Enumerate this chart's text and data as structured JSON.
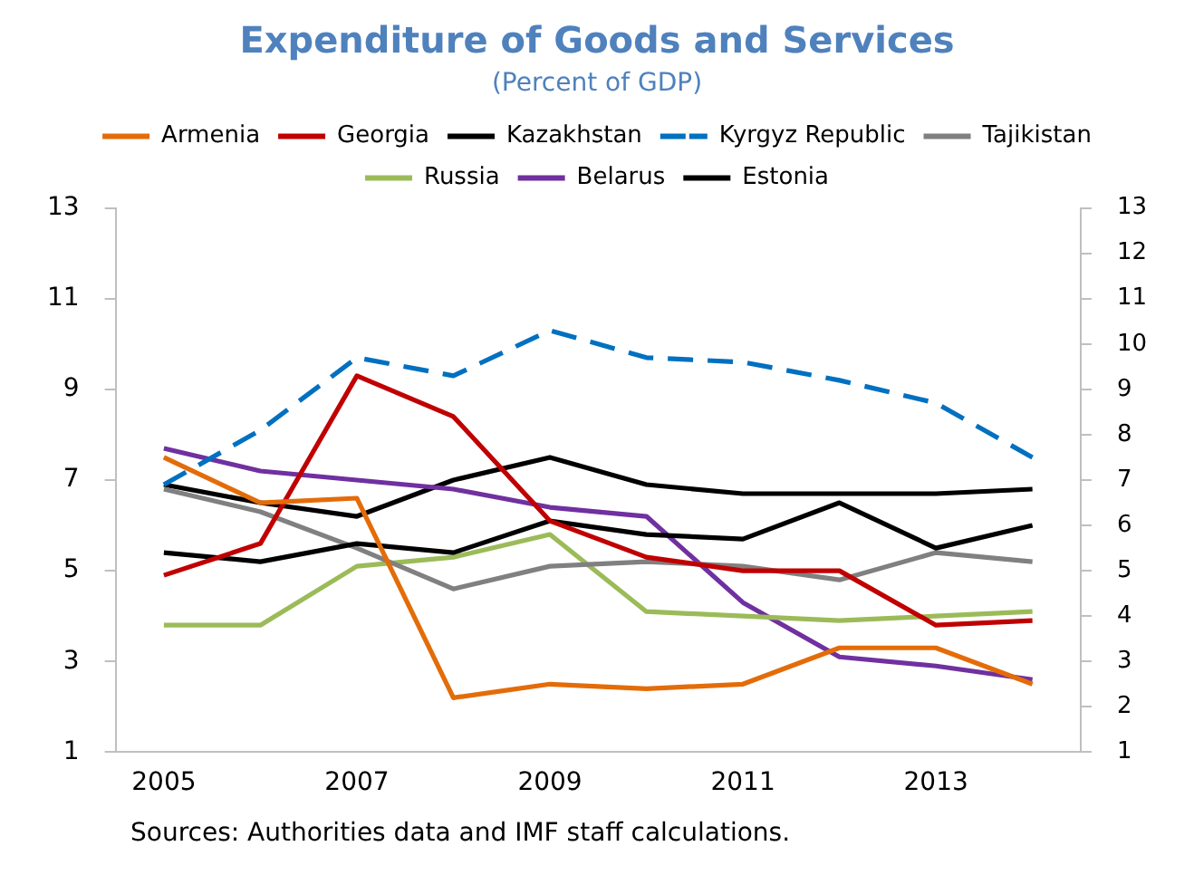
{
  "chart_data": {
    "type": "line",
    "title": "Expenditure of Goods and Services",
    "subtitle": "(Percent of GDP)",
    "x": [
      2005,
      2006,
      2007,
      2008,
      2009,
      2010,
      2011,
      2012,
      2013,
      2014
    ],
    "xlim": [
      2004.5,
      2014.5
    ],
    "xticks": [
      2005,
      2007,
      2009,
      2011,
      2013
    ],
    "ylim": [
      1,
      13
    ],
    "yticks": [
      1,
      3,
      5,
      7,
      9,
      11,
      13
    ],
    "y2lim": [
      1,
      13
    ],
    "y2ticks": [
      1,
      2,
      3,
      4,
      5,
      6,
      7,
      8,
      9,
      10,
      11,
      12,
      13
    ],
    "grid": false,
    "legend": "top",
    "marker": "none",
    "line_style": "solid",
    "series": [
      {
        "name": "Armenia",
        "color": "#e36c09",
        "values": [
          7.5,
          6.5,
          6.6,
          2.2,
          2.5,
          2.4,
          2.5,
          3.3,
          3.3,
          2.5
        ]
      },
      {
        "name": "Georgia",
        "color": "#c00000",
        "values": [
          4.9,
          5.6,
          9.3,
          8.4,
          6.1,
          5.3,
          5.0,
          5.0,
          3.8,
          3.9
        ]
      },
      {
        "name": "Kazakhstan",
        "color": "#000000",
        "values": [
          5.4,
          5.2,
          5.6,
          5.4,
          6.1,
          5.8,
          5.7,
          6.5,
          5.5,
          6.0
        ]
      },
      {
        "name": "Kyrgyz Republic",
        "color": "#0070c0",
        "line_style": "dashed",
        "values": [
          6.9,
          8.1,
          9.7,
          9.3,
          10.3,
          9.7,
          9.6,
          9.2,
          8.7,
          7.5
        ]
      },
      {
        "name": "Tajikistan",
        "color": "#808080",
        "values": [
          6.8,
          6.3,
          5.5,
          4.6,
          5.1,
          5.2,
          5.1,
          4.8,
          5.4,
          5.2
        ]
      },
      {
        "name": "Russia",
        "color": "#9bbb59",
        "values": [
          3.8,
          3.8,
          5.1,
          5.3,
          5.8,
          4.1,
          4.0,
          3.9,
          4.0,
          4.1
        ]
      },
      {
        "name": "Belarus",
        "color": "#7030a0",
        "values": [
          7.7,
          7.2,
          7.0,
          6.8,
          6.4,
          6.2,
          4.3,
          3.1,
          2.9,
          2.6
        ]
      },
      {
        "name": "Estonia",
        "color": "#000000",
        "values": [
          6.9,
          6.5,
          6.2,
          7.0,
          7.5,
          6.9,
          6.7,
          6.7,
          6.7,
          6.8
        ]
      }
    ],
    "annotations": [
      "Sources: Authorities data and IMF staff calculations."
    ]
  }
}
